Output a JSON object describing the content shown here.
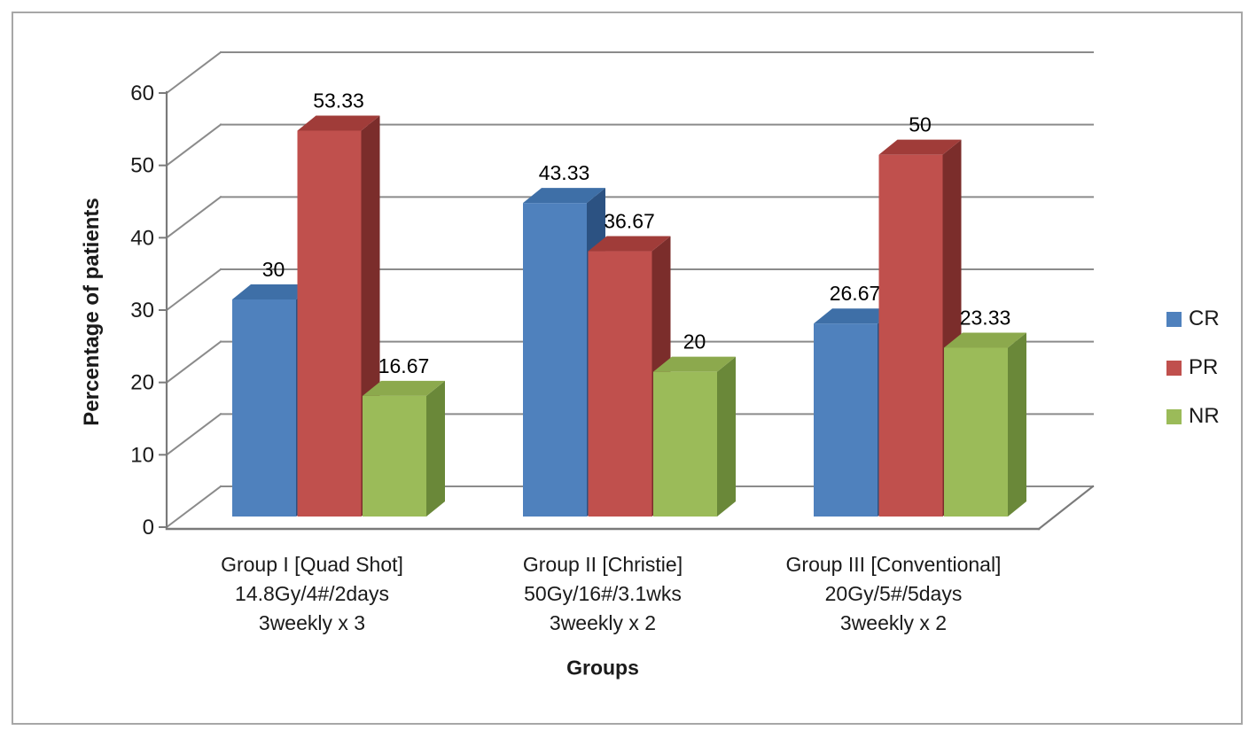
{
  "chart_data": {
    "type": "bar",
    "projection": "3d",
    "title": "",
    "xlabel": "Groups",
    "ylabel": "Percentage of patients",
    "ylim": [
      0,
      60
    ],
    "yticks": [
      0,
      10,
      20,
      30,
      40,
      50,
      60
    ],
    "grid": true,
    "legend_position": "right",
    "categories": [
      [
        "Group I [Quad Shot]",
        "14.8Gy/4#/2days",
        "3weekly x 3"
      ],
      [
        "Group II [Christie]",
        "50Gy/16#/3.1wks",
        "3weekly x 2"
      ],
      [
        "Group III [Conventional]",
        "20Gy/5#/5days",
        "3weekly x 2"
      ]
    ],
    "series": [
      {
        "name": "CR",
        "values": [
          30,
          43.33,
          26.67
        ],
        "labels": [
          "30",
          "43.33",
          "26.67"
        ],
        "color": "#4F81BD",
        "color_top": "#3E6FA7",
        "color_side": "#2C5282"
      },
      {
        "name": "PR",
        "values": [
          53.33,
          36.67,
          50
        ],
        "labels": [
          "53.33",
          "36.67",
          "50"
        ],
        "color": "#C0504D",
        "color_top": "#A03C39",
        "color_side": "#7B2D2B"
      },
      {
        "name": "NR",
        "values": [
          16.67,
          20,
          23.33
        ],
        "labels": [
          "16.67",
          "20",
          "23.33"
        ],
        "color": "#9BBB59",
        "color_top": "#8CA94D",
        "color_side": "#6A8839"
      }
    ],
    "colors": {
      "gridline": "#8b8b8b",
      "axis": "#7a7a7a",
      "text": "#1a1a1a",
      "data_label": "#000000",
      "frame_border": "#a7a7a7"
    }
  }
}
